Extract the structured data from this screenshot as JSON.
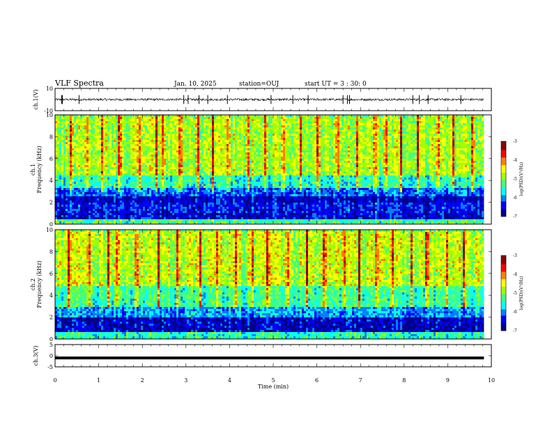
{
  "header": {
    "title": "VLF Spectra",
    "date": "Jan. 10, 2025",
    "station": "station=OUJ",
    "start": "start UT =  3 : 30: 0"
  },
  "colors": {
    "spectrogram": [
      "#00008b",
      "#0000ff",
      "#0080ff",
      "#00ffff",
      "#40ff80",
      "#a0ff00",
      "#ffff00",
      "#ff8000",
      "#ff0000",
      "#8b0000"
    ],
    "waveform": "#000000",
    "flat_trace": "#000000"
  },
  "chart_data": [
    {
      "type": "line",
      "name": "ch1-waveform",
      "ylabel": "ch.1(V)",
      "ylim": [
        -10,
        10
      ],
      "yticks": [
        "10",
        "-10"
      ],
      "x_range_min": [
        0,
        9.83
      ],
      "baseline": 0,
      "noise_amplitude": 1,
      "spikes_min": [
        0.15,
        0.17,
        0.55,
        2.95,
        3.05,
        3.3,
        3.5,
        3.95,
        4.95,
        5.45,
        5.8,
        6.6,
        6.7,
        6.75,
        8.2,
        8.35,
        8.55,
        9.3
      ],
      "spike_amplitude": 4
    },
    {
      "type": "heatmap",
      "name": "ch1-spectrogram",
      "ylabel": "ch.1\nFrequency (kHz)",
      "ylim": [
        0,
        10
      ],
      "yticks": [
        "0",
        "2",
        "4",
        "6",
        "8",
        "10"
      ],
      "x_range_min": [
        0,
        9.83
      ],
      "colorbar": {
        "label": "log(PSD)(V²/Hz)",
        "range": [
          -7,
          -3
        ],
        "ticks": [
          "-3",
          "-4",
          "-5",
          "-6",
          "-7"
        ]
      },
      "band_levels_by_kHz": [
        {
          "f": [
            0,
            0.6
          ],
          "level": 0.45
        },
        {
          "f": [
            0.6,
            1.2
          ],
          "level": 0.12
        },
        {
          "f": [
            1.2,
            2.0
          ],
          "level": 0.15
        },
        {
          "f": [
            2.0,
            2.7
          ],
          "level": 0.08
        },
        {
          "f": [
            2.7,
            3.5
          ],
          "level": 0.22
        },
        {
          "f": [
            3.5,
            4.5
          ],
          "level": 0.38
        },
        {
          "f": [
            4.5,
            10
          ],
          "level": 0.55
        }
      ],
      "burst_times_min": [
        0.35,
        0.7,
        1.05,
        1.45,
        1.9,
        2.3,
        2.45,
        2.85,
        3.25,
        3.6,
        3.95,
        4.4,
        4.8,
        5.2,
        5.6,
        6.0,
        6.45,
        6.9,
        7.3,
        7.55,
        7.9,
        8.3,
        8.75,
        9.1,
        9.55
      ]
    },
    {
      "type": "heatmap",
      "name": "ch2-spectrogram",
      "ylabel": "ch.2\nFrequency (kHz)",
      "ylim": [
        0,
        10
      ],
      "yticks": [
        "0",
        "2",
        "4",
        "6",
        "8",
        "10"
      ],
      "x_range_min": [
        0,
        9.83
      ],
      "colorbar": {
        "label": "log(PSD)(V²/Hz)",
        "range": [
          -7,
          -3
        ],
        "ticks": [
          "-3",
          "-4",
          "-5",
          "-6",
          "-7"
        ]
      },
      "band_levels_by_kHz": [
        {
          "f": [
            0,
            0.8
          ],
          "level": 0.4
        },
        {
          "f": [
            0.8,
            2.0
          ],
          "level": 0.1
        },
        {
          "f": [
            2.0,
            3.0
          ],
          "level": 0.28
        },
        {
          "f": [
            3.0,
            5.0
          ],
          "level": 0.42
        },
        {
          "f": [
            5.0,
            10
          ],
          "level": 0.58
        }
      ],
      "burst_times_min": [
        0.3,
        0.75,
        1.2,
        1.4,
        1.85,
        2.35,
        2.8,
        3.3,
        3.7,
        4.1,
        4.5,
        4.85,
        5.3,
        5.75,
        6.15,
        6.6,
        6.95,
        7.35,
        7.7,
        8.15,
        8.5,
        8.95,
        9.35
      ]
    },
    {
      "type": "line",
      "name": "ch3-trace",
      "ylabel": "ch.3(V)",
      "ylim": [
        -5,
        5
      ],
      "yticks": [
        "5",
        "0",
        "-5"
      ],
      "x_range_min": [
        0,
        9.83
      ],
      "value": -1
    }
  ],
  "x_axis": {
    "label": "Time (min)",
    "range": [
      0,
      10
    ],
    "ticks": [
      "0",
      "1",
      "2",
      "3",
      "4",
      "5",
      "6",
      "7",
      "8",
      "9",
      "10"
    ]
  }
}
